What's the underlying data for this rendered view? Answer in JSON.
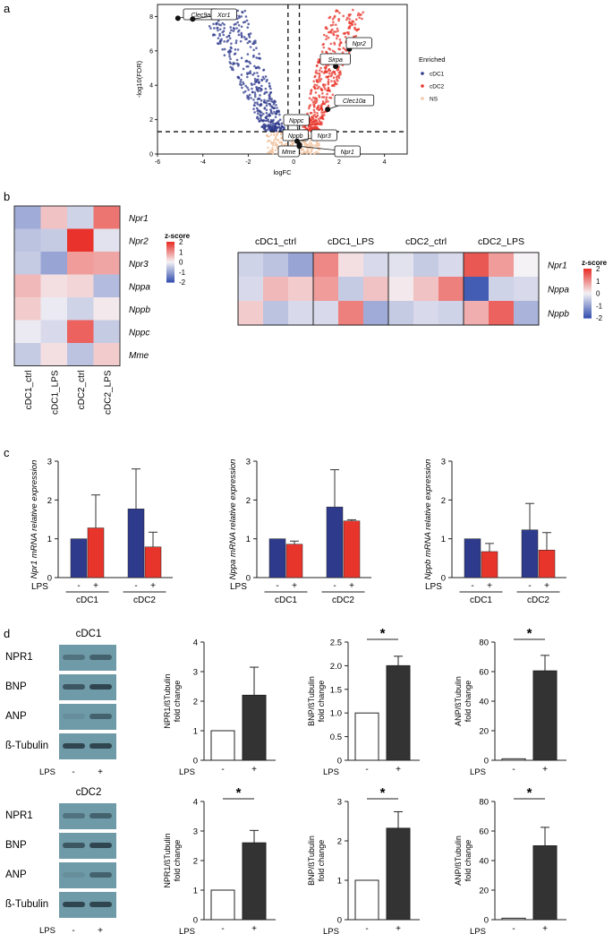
{
  "colors": {
    "cdc1": "#2e3a8c",
    "cdc2": "#e8352b",
    "ns": "#f2c8a8",
    "heat_low": "#3a55b2",
    "heat_mid": "#f4f2f5",
    "heat_high": "#e8322b",
    "bar_black": "#333333",
    "blot_bg": "#6f9aa8"
  },
  "panels": {
    "a": "a",
    "b": "b",
    "c": "c",
    "d": "d"
  },
  "chart_data": [
    {
      "id": "volcano",
      "type": "scatter",
      "xlabel": "logFC",
      "ylabel": "-log10(FDR)",
      "xlim": [
        -6,
        5
      ],
      "ylim": [
        0,
        8.7
      ],
      "xticks": [
        -6,
        -4,
        -2,
        0,
        2,
        4
      ],
      "yticks": [
        0,
        2,
        4,
        6,
        8
      ],
      "threshold_lines": {
        "x": [
          -0.25,
          0.25
        ],
        "y": 1.3
      },
      "legend": {
        "title": "Enriched",
        "position": "right",
        "entries": [
          "cDC1",
          "cDC2",
          "NS"
        ]
      },
      "labeled_points": [
        {
          "gene": "Clec9a",
          "x": -5.1,
          "y": 7.9
        },
        {
          "gene": "Xcr1",
          "x": -4.45,
          "y": 7.85
        },
        {
          "gene": "Npr2",
          "x": 2.45,
          "y": 6.1
        },
        {
          "gene": "Sirpa",
          "x": 1.85,
          "y": 5.1
        },
        {
          "gene": "Clec10a",
          "x": 1.5,
          "y": 2.6
        },
        {
          "gene": "Nppc",
          "x": 0.2,
          "y": 1.2
        },
        {
          "gene": "Nppb",
          "x": 0.25,
          "y": 0.55
        },
        {
          "gene": "Npr3",
          "x": 0.15,
          "y": 0.75
        },
        {
          "gene": "Mme",
          "x": -0.2,
          "y": 0.05
        },
        {
          "gene": "Npr1",
          "x": 0.25,
          "y": 0.45
        }
      ]
    },
    {
      "id": "heatmap_rna",
      "type": "heatmap",
      "columns": [
        "cDC1_ctrl",
        "cDC1_LPS",
        "cDC2_ctrl",
        "cDC2_LPS"
      ],
      "rows": [
        "Npr1",
        "Npr2",
        "Npr3",
        "Nppa",
        "Nppb",
        "Nppc",
        "Mme"
      ],
      "values": [
        [
          -0.9,
          0.5,
          -0.4,
          1.3
        ],
        [
          -0.6,
          -0.5,
          2.0,
          -0.2
        ],
        [
          -0.5,
          -1.0,
          0.9,
          0.8
        ],
        [
          0.6,
          0.2,
          0.3,
          -0.7
        ],
        [
          0.4,
          -0.1,
          -0.4,
          0.1
        ],
        [
          -0.1,
          -0.3,
          1.5,
          -0.5
        ],
        [
          -0.5,
          0.2,
          -0.6,
          0.4
        ]
      ],
      "legend": {
        "title": "z-score",
        "ticks": [
          2,
          1,
          0,
          -1,
          -2
        ]
      }
    },
    {
      "id": "heatmap_pooled",
      "type": "heatmap",
      "groups": [
        "cDC1_ctrl",
        "cDC1_LPS",
        "cDC2_ctrl",
        "cDC2_LPS"
      ],
      "rows": [
        "Npr1",
        "Nppa",
        "Nppb"
      ],
      "values": [
        [
          -0.4,
          -0.6,
          -1.0,
          1.1,
          0.2,
          -0.3,
          -0.2,
          -0.5,
          -0.3,
          1.6,
          0.9,
          0.0
        ],
        [
          -0.3,
          0.6,
          0.4,
          0.9,
          -0.5,
          0.5,
          0.1,
          0.5,
          1.2,
          -1.9,
          -0.4,
          -0.3
        ],
        [
          0.4,
          -0.6,
          -0.3,
          -0.3,
          1.2,
          -0.9,
          -0.5,
          -0.3,
          -0.4,
          0.7,
          1.5,
          -0.8
        ]
      ],
      "legend": {
        "title": "z-score",
        "ticks": [
          2,
          1,
          0,
          -1,
          -2
        ]
      }
    },
    {
      "id": "qpcr_npr1",
      "type": "bar",
      "ylabel": "Npr1 mRNA relative expression",
      "ylim": [
        0,
        3
      ],
      "yticks": [
        0,
        1,
        2,
        3
      ],
      "groups": [
        "cDC1",
        "cDC2"
      ],
      "lps": [
        "-",
        "+"
      ],
      "lps_label": "LPS",
      "values": [
        1.0,
        1.28,
        1.77,
        0.79
      ],
      "errors": [
        0,
        0.85,
        1.03,
        0.38
      ]
    },
    {
      "id": "qpcr_nppa",
      "type": "bar",
      "ylabel": "Nppa mRNA relative expression",
      "ylim": [
        0,
        3
      ],
      "yticks": [
        0,
        1,
        2,
        3
      ],
      "groups": [
        "cDC1",
        "cDC2"
      ],
      "lps": [
        "-",
        "+"
      ],
      "lps_label": "LPS",
      "values": [
        1.0,
        0.86,
        1.82,
        1.46
      ],
      "errors": [
        0,
        0.08,
        0.96,
        0.03
      ]
    },
    {
      "id": "qpcr_nppb",
      "type": "bar",
      "ylabel": "Nppb mRNA relative expression",
      "ylim": [
        0,
        3
      ],
      "yticks": [
        0,
        1,
        2,
        3
      ],
      "groups": [
        "cDC1",
        "cDC2"
      ],
      "lps": [
        "-",
        "+"
      ],
      "lps_label": "LPS",
      "values": [
        1.0,
        0.67,
        1.23,
        0.71
      ],
      "errors": [
        0,
        0.21,
        0.68,
        0.45
      ]
    },
    {
      "id": "wb_cdc1_npr1",
      "type": "bar",
      "ylabel_lines": [
        "NPR1/ßTubulin",
        "fold change"
      ],
      "ylim": [
        0,
        4
      ],
      "yticks": [
        0,
        1,
        2,
        3,
        4
      ],
      "categories": [
        "-",
        "+"
      ],
      "lps_label": "LPS",
      "values": [
        1.0,
        2.2
      ],
      "errors": [
        0,
        0.95
      ],
      "significance": ""
    },
    {
      "id": "wb_cdc1_bnp",
      "type": "bar",
      "ylabel_lines": [
        "BNP/ßTubulin",
        "fold change"
      ],
      "ylim": [
        0,
        2.5
      ],
      "yticks": [
        0,
        0.5,
        1.0,
        1.5,
        2.0,
        2.5
      ],
      "categories": [
        "-",
        "+"
      ],
      "lps_label": "LPS",
      "values": [
        1.0,
        2.0
      ],
      "errors": [
        0,
        0.2
      ],
      "significance": "*"
    },
    {
      "id": "wb_cdc1_anp",
      "type": "bar",
      "ylabel_lines": [
        "ANP/ßTubulin",
        "fold change"
      ],
      "ylim": [
        0,
        80
      ],
      "yticks": [
        0,
        20,
        40,
        60,
        80
      ],
      "categories": [
        "-",
        "+"
      ],
      "lps_label": "LPS",
      "values": [
        1.0,
        60.5
      ],
      "errors": [
        0,
        10.5
      ],
      "significance": "*"
    },
    {
      "id": "wb_cdc2_npr1",
      "type": "bar",
      "ylabel_lines": [
        "NPR1/ßTubulin",
        "fold change"
      ],
      "ylim": [
        0,
        4
      ],
      "yticks": [
        0,
        1,
        2,
        3,
        4
      ],
      "categories": [
        "-",
        "+"
      ],
      "lps_label": "LPS",
      "values": [
        1.0,
        2.6
      ],
      "errors": [
        0,
        0.42
      ],
      "significance": "*"
    },
    {
      "id": "wb_cdc2_bnp",
      "type": "bar",
      "ylabel_lines": [
        "BNP/ßTubulin",
        "fold change"
      ],
      "ylim": [
        0,
        3
      ],
      "yticks": [
        0,
        1,
        2,
        3
      ],
      "categories": [
        "-",
        "+"
      ],
      "lps_label": "LPS",
      "values": [
        1.0,
        2.32
      ],
      "errors": [
        0,
        0.42
      ],
      "significance": "*"
    },
    {
      "id": "wb_cdc2_anp",
      "type": "bar",
      "ylabel_lines": [
        "ANP/ßTubulin",
        "fold change"
      ],
      "ylim": [
        0,
        80
      ],
      "yticks": [
        0,
        20,
        40,
        60,
        80
      ],
      "categories": [
        "-",
        "+"
      ],
      "lps_label": "LPS",
      "values": [
        1.0,
        50.0
      ],
      "errors": [
        0,
        12.5
      ],
      "significance": "*"
    }
  ],
  "blots": [
    {
      "title": "cDC1",
      "rows": [
        "NPR1",
        "BNP",
        "ANP",
        "ß-Tubulin"
      ],
      "lps_label": "LPS",
      "lanes": [
        "-",
        "+"
      ]
    },
    {
      "title": "cDC2",
      "rows": [
        "NPR1",
        "BNP",
        "ANP",
        "ß-Tubulin"
      ],
      "lps_label": "LPS",
      "lanes": [
        "-",
        "+"
      ]
    }
  ]
}
